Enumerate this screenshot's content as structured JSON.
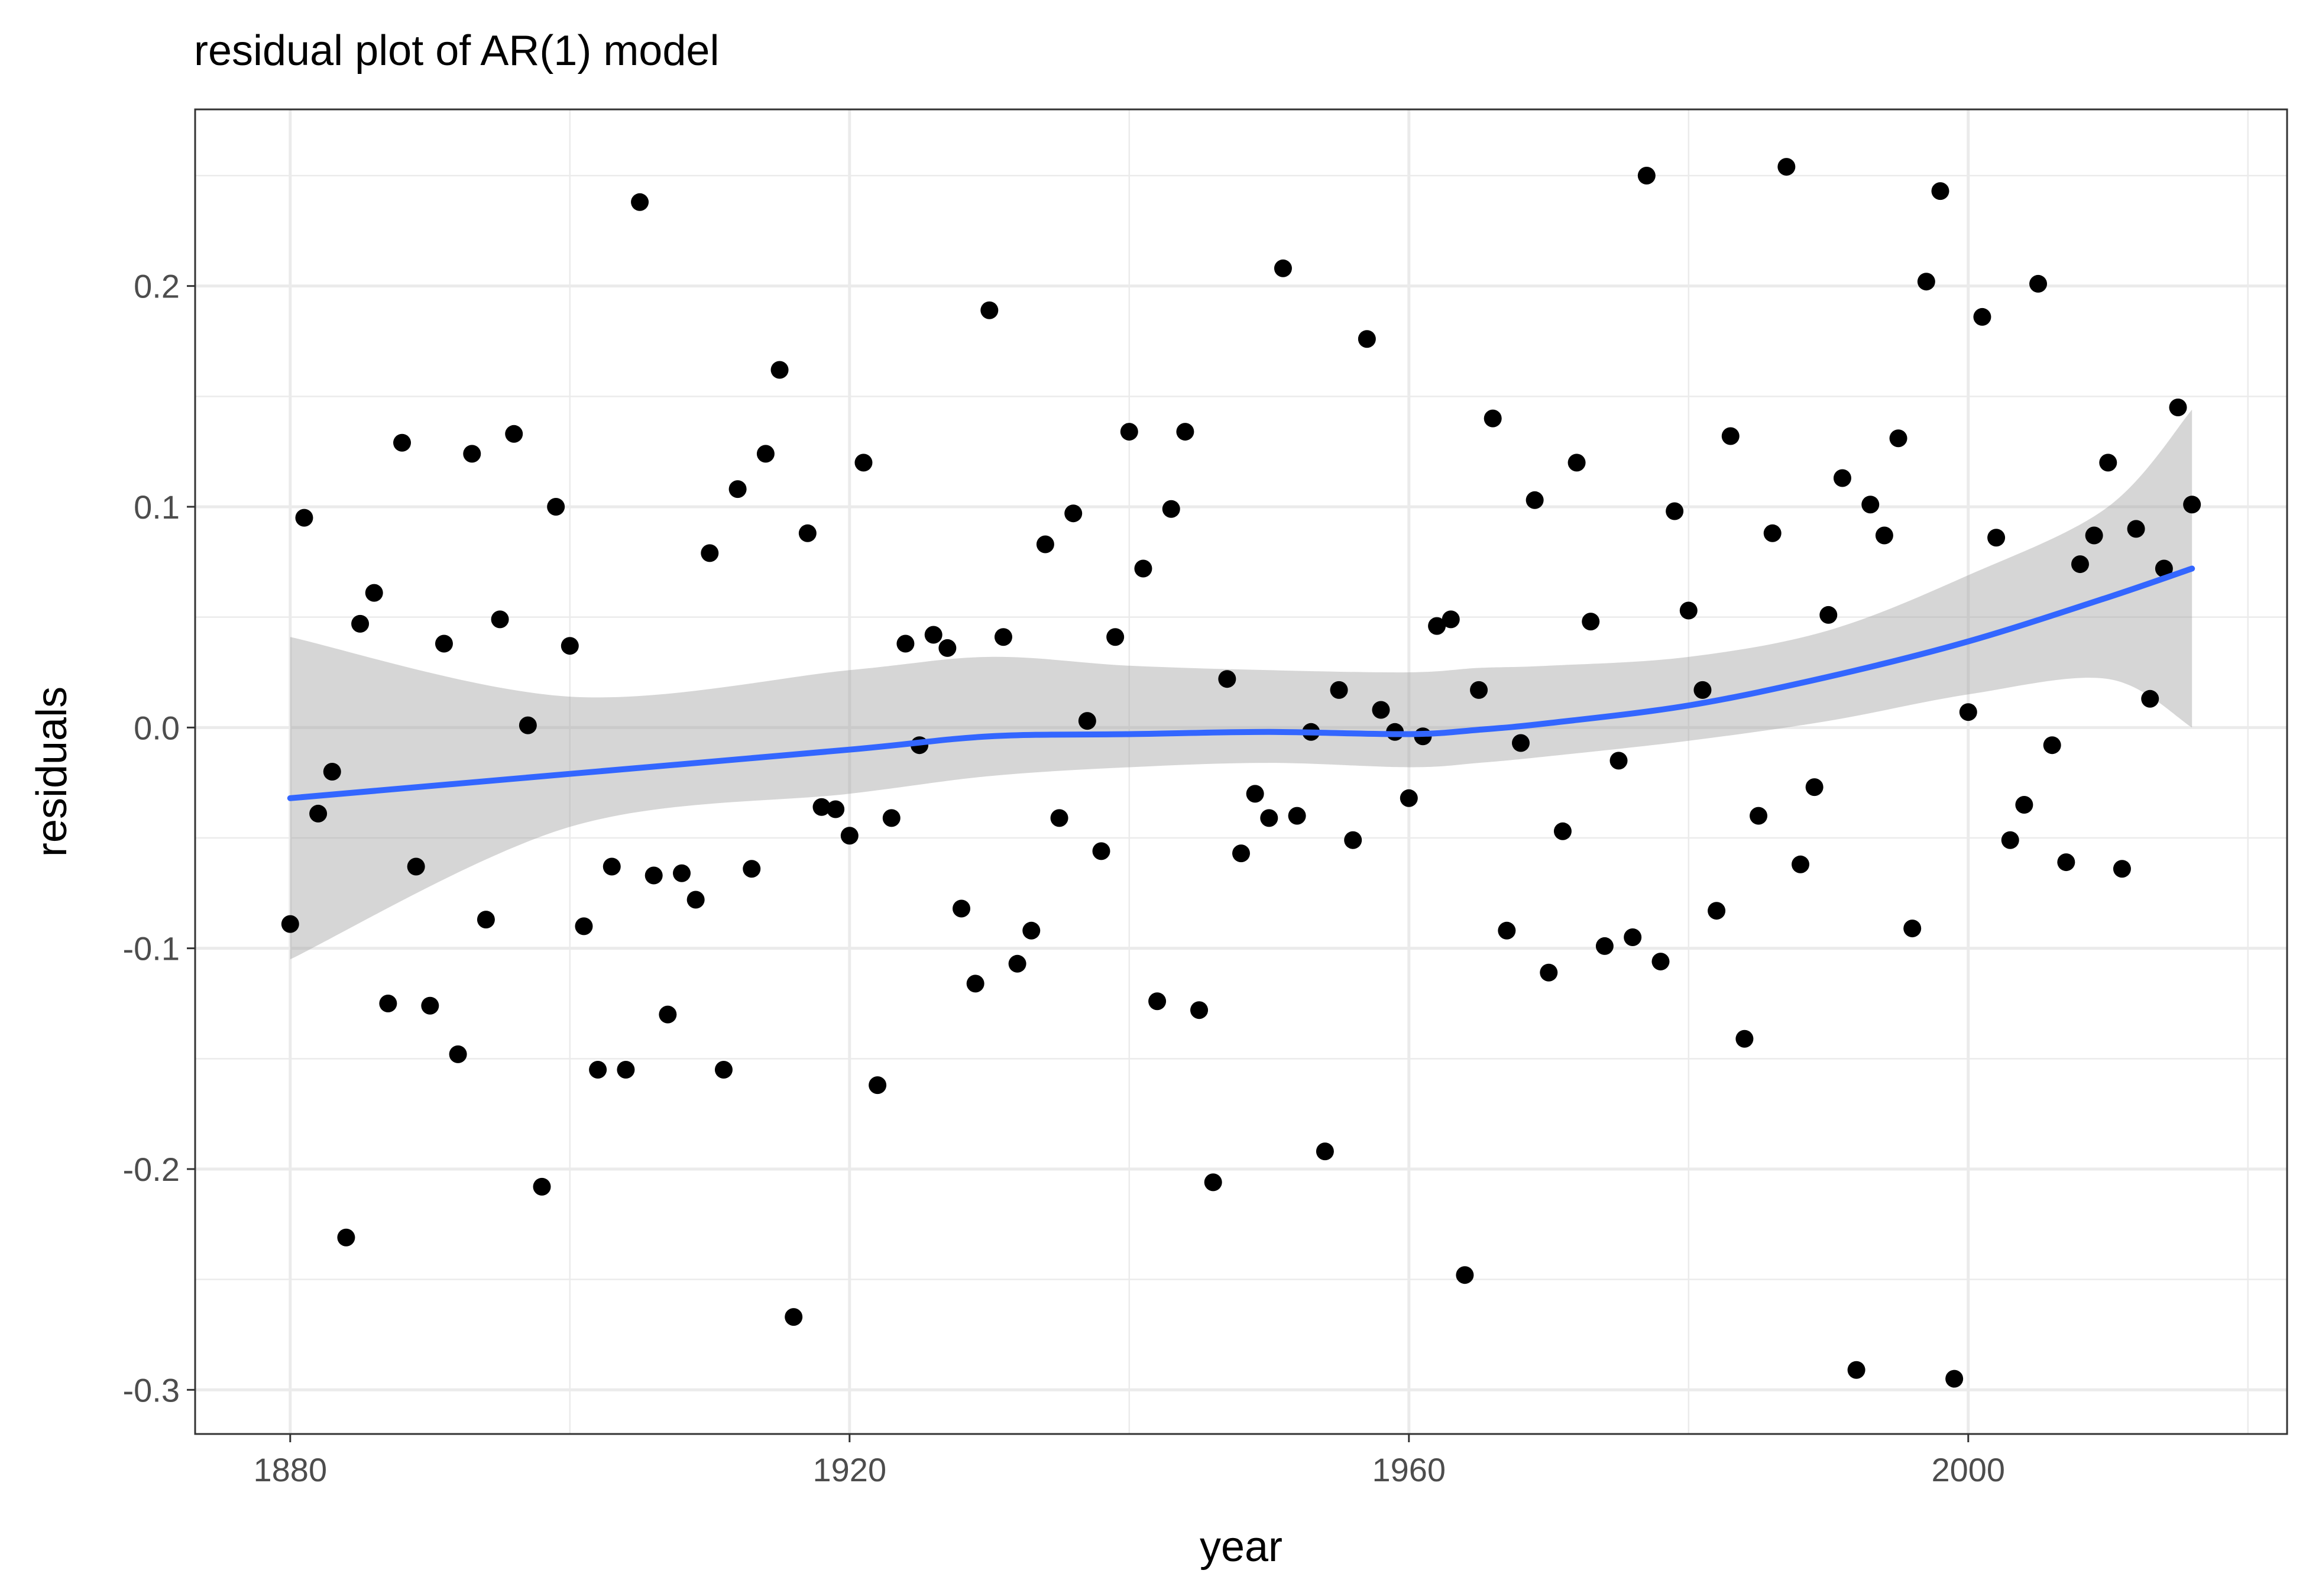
{
  "chart_data": {
    "type": "scatter",
    "title": "residual plot of AR(1) model",
    "xlabel": "year",
    "ylabel": "residuals",
    "xlim": [
      1873.2,
      2022.8
    ],
    "ylim": [
      -0.32,
      0.28
    ],
    "x_ticks": [
      1880,
      1920,
      1960,
      2000
    ],
    "x_tick_labels": [
      "1880",
      "1920",
      "1960",
      "2000"
    ],
    "y_ticks": [
      -0.3,
      -0.2,
      -0.1,
      0.0,
      0.1,
      0.2
    ],
    "y_tick_labels": [
      "-0.3",
      "-0.2",
      "-0.1",
      "0.0",
      "0.1",
      "0.2"
    ],
    "grid": true,
    "colors": {
      "points": "#000000",
      "smooth_line": "#3366ff",
      "confidence_band": "#999999",
      "grid": "#ebebeb",
      "panel_border": "#333333"
    },
    "points": {
      "x": [
        1880,
        1881,
        1882,
        1883,
        1884,
        1885,
        1886,
        1887,
        1888,
        1889,
        1890,
        1891,
        1892,
        1893,
        1894,
        1895,
        1896,
        1897,
        1898,
        1899,
        1900,
        1901,
        1902,
        1903,
        1904,
        1905,
        1906,
        1907,
        1908,
        1909,
        1910,
        1911,
        1912,
        1913,
        1914,
        1915,
        1916,
        1917,
        1918,
        1919,
        1920,
        1921,
        1922,
        1923,
        1924,
        1925,
        1926,
        1927,
        1928,
        1929,
        1930,
        1931,
        1932,
        1933,
        1934,
        1935,
        1936,
        1937,
        1938,
        1939,
        1940,
        1941,
        1942,
        1943,
        1944,
        1945,
        1946,
        1947,
        1948,
        1949,
        1950,
        1951,
        1952,
        1953,
        1954,
        1955,
        1956,
        1957,
        1958,
        1959,
        1960,
        1961,
        1962,
        1963,
        1964,
        1965,
        1966,
        1967,
        1968,
        1969,
        1970,
        1971,
        1972,
        1973,
        1974,
        1975,
        1976,
        1977,
        1978,
        1979,
        1980,
        1981,
        1982,
        1983,
        1984,
        1985,
        1986,
        1987,
        1988,
        1989,
        1990,
        1991,
        1992,
        1993,
        1994,
        1995,
        1996,
        1997,
        1998,
        1999,
        2000,
        2001,
        2002,
        2003,
        2004,
        2005,
        2006,
        2007,
        2008,
        2009,
        2010,
        2011,
        2012,
        2013,
        2014,
        2015,
        2016
      ],
      "y": [
        -0.089,
        0.095,
        -0.039,
        -0.02,
        -0.231,
        0.047,
        0.061,
        -0.125,
        0.129,
        -0.063,
        -0.126,
        0.038,
        -0.148,
        0.124,
        -0.087,
        0.049,
        0.133,
        0.001,
        -0.208,
        0.1,
        0.037,
        -0.09,
        -0.155,
        -0.063,
        -0.155,
        0.238,
        -0.067,
        -0.13,
        -0.066,
        -0.078,
        0.079,
        -0.155,
        0.108,
        -0.064,
        0.124,
        0.162,
        -0.267,
        0.088,
        -0.036,
        -0.037,
        -0.049,
        0.12,
        -0.162,
        -0.041,
        0.038,
        -0.008,
        0.042,
        0.036,
        -0.082,
        -0.116,
        0.189,
        0.041,
        -0.107,
        -0.092,
        0.083,
        -0.041,
        0.097,
        0.003,
        -0.056,
        0.041,
        0.134,
        0.072,
        -0.124,
        0.099,
        0.134,
        -0.128,
        -0.206,
        0.022,
        -0.057,
        -0.03,
        -0.041,
        0.208,
        -0.04,
        -0.002,
        -0.192,
        0.017,
        -0.051,
        0.176,
        0.008,
        -0.002,
        -0.032,
        -0.004,
        0.046,
        0.049,
        -0.248,
        0.017,
        0.14,
        -0.092,
        -0.007,
        0.103,
        -0.111,
        -0.047,
        0.12,
        0.048,
        -0.099,
        -0.015,
        -0.095,
        0.25,
        -0.106,
        0.098,
        0.053,
        0.017,
        -0.083,
        0.132,
        -0.141,
        -0.04,
        0.088,
        0.254,
        -0.062,
        -0.027,
        0.051,
        0.113,
        -0.291,
        0.101,
        0.087,
        0.131,
        -0.091,
        0.202,
        0.243,
        -0.295,
        0.007,
        0.186,
        0.086,
        -0.051,
        -0.035,
        0.201,
        -0.008,
        -0.061,
        0.074,
        0.087,
        0.12,
        -0.064,
        0.09,
        0.013,
        0.072,
        0.145,
        0.101
      ]
    },
    "smooth": {
      "method": "loess",
      "x": [
        1880,
        1900,
        1920,
        1930,
        1940,
        1950,
        1960,
        1965,
        1970,
        1980,
        1990,
        2000,
        2010,
        2016
      ],
      "y": [
        -0.032,
        -0.021,
        -0.01,
        -0.004,
        -0.003,
        -0.002,
        -0.003,
        -0.001,
        0.002,
        0.01,
        0.023,
        0.039,
        0.059,
        0.072
      ],
      "ci_lower": [
        -0.105,
        -0.045,
        -0.03,
        -0.022,
        -0.018,
        -0.016,
        -0.018,
        -0.016,
        -0.013,
        -0.006,
        0.003,
        0.015,
        0.022,
        0.0
      ],
      "ci_upper": [
        0.041,
        0.014,
        0.026,
        0.032,
        0.028,
        0.026,
        0.025,
        0.027,
        0.028,
        0.032,
        0.044,
        0.069,
        0.1,
        0.144
      ]
    }
  }
}
